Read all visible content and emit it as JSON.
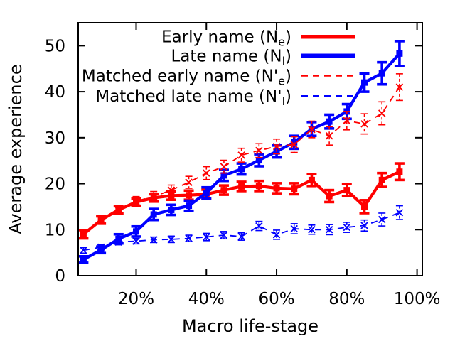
{
  "chart_data": {
    "type": "line",
    "title": "",
    "xlabel": "Macro life-stage",
    "ylabel": "Average experience",
    "xlim": [
      3.5,
      101.5
    ],
    "ylim": [
      0,
      55
    ],
    "grid": false,
    "legend_position": "top-inside-right",
    "x_tick_values": [
      20,
      40,
      60,
      80,
      100
    ],
    "x_tick_labels": [
      "20%",
      "40%",
      "60%",
      "80%",
      "100%"
    ],
    "y_tick_values": [
      0,
      10,
      20,
      30,
      40,
      50
    ],
    "y_tick_labels": [
      "0",
      "10",
      "20",
      "30",
      "40",
      "50"
    ],
    "axis_color": "#000000",
    "series": [
      {
        "id": "early-name",
        "legend_pre": "Early name (N",
        "legend_sub": "e",
        "legend_post": ")",
        "color": "#ff0000",
        "line_style": "solid",
        "marker": "square",
        "error_bars": true,
        "x": [
          5,
          10,
          15,
          20,
          25,
          30,
          35,
          40,
          45,
          50,
          55,
          60,
          65,
          70,
          75,
          80,
          85,
          90,
          95
        ],
        "y": [
          9.0,
          12.1,
          14.3,
          16.0,
          16.9,
          17.4,
          17.5,
          17.7,
          18.6,
          19.4,
          19.5,
          19.0,
          18.9,
          20.8,
          17.3,
          18.6,
          15.0,
          20.8,
          22.6
        ],
        "yerr": [
          0.9,
          0.8,
          0.8,
          0.8,
          0.8,
          0.9,
          1.0,
          1.0,
          1.0,
          1.0,
          1.1,
          1.1,
          1.2,
          1.3,
          1.3,
          1.3,
          1.4,
          1.5,
          1.8
        ]
      },
      {
        "id": "late-name",
        "legend_pre": "Late name (N",
        "legend_sub": "l",
        "legend_post": ")",
        "color": "#0000ff",
        "line_style": "solid",
        "marker": "square",
        "error_bars": true,
        "x": [
          5,
          10,
          15,
          20,
          25,
          30,
          35,
          40,
          45,
          50,
          55,
          60,
          65,
          70,
          75,
          80,
          85,
          90,
          95
        ],
        "y": [
          3.5,
          5.6,
          8.0,
          9.6,
          13.3,
          14.3,
          15.2,
          18.0,
          21.8,
          23.2,
          25.1,
          27.0,
          29.0,
          31.9,
          33.5,
          35.7,
          42.0,
          44.0,
          48.3
        ],
        "yerr": [
          0.7,
          0.7,
          1.0,
          1.1,
          1.2,
          1.1,
          1.1,
          1.2,
          1.2,
          1.2,
          1.3,
          1.3,
          1.4,
          1.5,
          1.5,
          1.6,
          2.0,
          2.4,
          2.7
        ]
      },
      {
        "id": "matched-early-name",
        "legend_pre": "Matched early name (N'",
        "legend_sub": "e",
        "legend_post": ")",
        "color": "#ff0000",
        "line_style": "dashed",
        "marker": "x",
        "error_bars": true,
        "x": [
          15,
          20,
          25,
          30,
          35,
          40,
          45,
          50,
          55,
          60,
          65,
          70,
          75,
          80,
          85,
          90,
          95
        ],
        "y": [
          14.2,
          16.2,
          17.2,
          18.6,
          20.3,
          22.3,
          23.7,
          26.2,
          27.2,
          28.1,
          28.5,
          31.8,
          30.4,
          33.7,
          33.0,
          35.3,
          41.0
        ],
        "yerr": [
          0.9,
          1.0,
          1.1,
          1.1,
          1.3,
          1.4,
          1.4,
          1.5,
          1.5,
          1.6,
          1.7,
          1.8,
          2.0,
          2.0,
          2.2,
          2.5,
          2.9
        ]
      },
      {
        "id": "matched-late-name",
        "legend_pre": "Matched late name (N'",
        "legend_sub": "l",
        "legend_post": ")",
        "color": "#0000ff",
        "line_style": "dashed",
        "marker": "x",
        "error_bars": true,
        "x": [
          5,
          10,
          15,
          20,
          25,
          30,
          35,
          40,
          45,
          50,
          55,
          60,
          65,
          70,
          75,
          80,
          85,
          90,
          95
        ],
        "y": [
          5.5,
          6.2,
          7.3,
          7.5,
          7.8,
          7.9,
          8.1,
          8.4,
          8.8,
          8.5,
          10.8,
          8.9,
          10.2,
          10.0,
          10.0,
          10.5,
          10.9,
          12.2,
          13.7
        ],
        "yerr": [
          0.6,
          0.5,
          0.6,
          0.6,
          0.6,
          0.7,
          0.7,
          0.8,
          0.8,
          0.8,
          1.0,
          1.0,
          1.1,
          1.0,
          1.1,
          1.1,
          1.2,
          1.4,
          1.5
        ]
      }
    ]
  }
}
